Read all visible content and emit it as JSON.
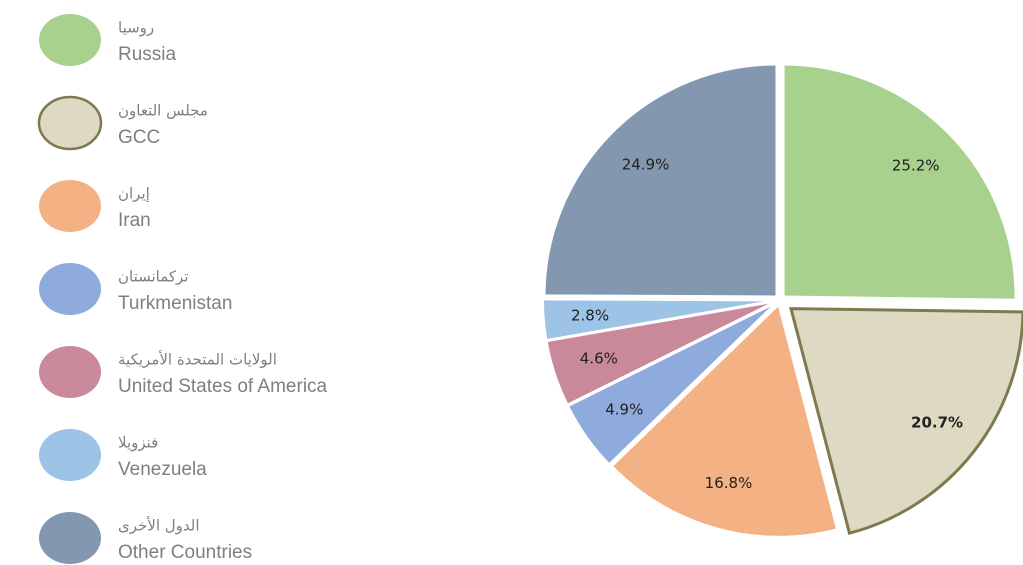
{
  "chart_data": {
    "type": "pie",
    "categories": [
      "Russia",
      "GCC",
      "Iran",
      "Turkmenistan",
      "United States of America",
      "Venezuela",
      "Other Countries"
    ],
    "categories_ar": [
      "روسيا",
      "مجلس التعاون",
      "إيران",
      "تركمانستان",
      "الولايات المتحدة الأمريكية",
      "فنزويلا",
      "الدول الأخرى"
    ],
    "values": [
      25.2,
      20.7,
      16.8,
      4.9,
      4.6,
      2.8,
      24.9
    ],
    "value_labels": [
      "25.2%",
      "20.7%",
      "16.8%",
      "4.9%",
      "4.6%",
      "2.8%",
      "24.9%"
    ],
    "colors": [
      "#a9d18e",
      "#ddd9c3",
      "#f4b183",
      "#8faadc",
      "#c9899a",
      "#9dc3e6",
      "#8497b0"
    ],
    "legend": "left"
  }
}
